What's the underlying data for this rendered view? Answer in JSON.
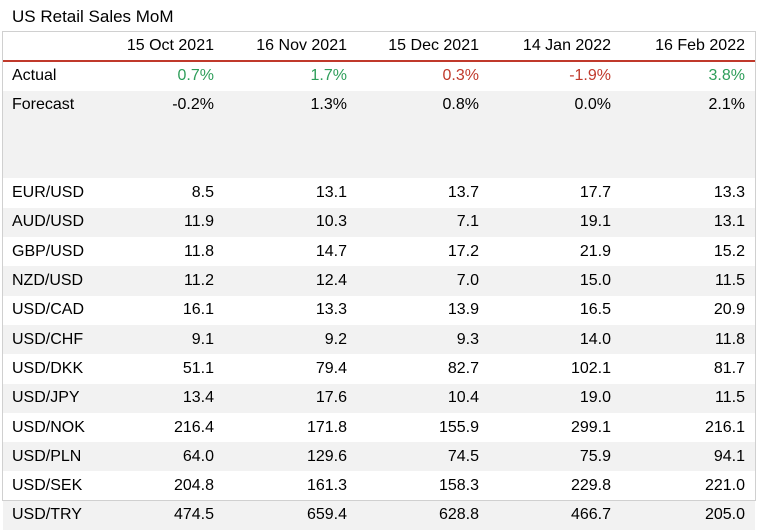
{
  "title": "US Retail Sales MoM",
  "columns": [
    "15 Oct 2021",
    "16 Nov 2021",
    "15 Dec 2021",
    "14 Jan 2022",
    "16 Feb 2022"
  ],
  "colors": {
    "positive": "#2e9e5a",
    "negative": "#c0392b",
    "header_rule": "#c0392b",
    "row_shade": "#f2f2f2"
  },
  "actual": {
    "label": "Actual",
    "values": [
      "0.7%",
      "1.7%",
      "0.3%",
      "-1.9%",
      "3.8%"
    ],
    "tones": [
      "pos",
      "pos",
      "neg",
      "neg",
      "pos"
    ]
  },
  "forecast": {
    "label": "Forecast",
    "values": [
      "-0.2%",
      "1.3%",
      "0.8%",
      "0.0%",
      "2.1%"
    ]
  },
  "rows": [
    {
      "label": "EUR/USD",
      "values": [
        "8.5",
        "13.1",
        "13.7",
        "17.7",
        "13.3"
      ]
    },
    {
      "label": "AUD/USD",
      "values": [
        "11.9",
        "10.3",
        "7.1",
        "19.1",
        "13.1"
      ]
    },
    {
      "label": "GBP/USD",
      "values": [
        "11.8",
        "14.7",
        "17.2",
        "21.9",
        "15.2"
      ]
    },
    {
      "label": "NZD/USD",
      "values": [
        "11.2",
        "12.4",
        "7.0",
        "15.0",
        "11.5"
      ]
    },
    {
      "label": "USD/CAD",
      "values": [
        "16.1",
        "13.3",
        "13.9",
        "16.5",
        "20.9"
      ]
    },
    {
      "label": "USD/CHF",
      "values": [
        "9.1",
        "9.2",
        "9.3",
        "14.0",
        "11.8"
      ]
    },
    {
      "label": "USD/DKK",
      "values": [
        "51.1",
        "79.4",
        "82.7",
        "102.1",
        "81.7"
      ]
    },
    {
      "label": "USD/JPY",
      "values": [
        "13.4",
        "17.6",
        "10.4",
        "19.0",
        "11.5"
      ]
    },
    {
      "label": "USD/NOK",
      "values": [
        "216.4",
        "171.8",
        "155.9",
        "299.1",
        "216.1"
      ]
    },
    {
      "label": "USD/PLN",
      "values": [
        "64.0",
        "129.6",
        "74.5",
        "75.9",
        "94.1"
      ]
    },
    {
      "label": "USD/SEK",
      "values": [
        "204.8",
        "161.3",
        "158.3",
        "229.8",
        "221.0"
      ]
    },
    {
      "label": "USD/TRY",
      "values": [
        "474.5",
        "659.4",
        "628.8",
        "466.7",
        "205.0"
      ]
    }
  ]
}
